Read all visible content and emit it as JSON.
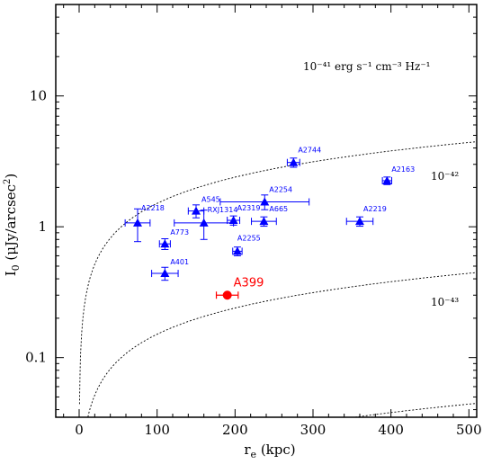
{
  "chart_data": {
    "type": "scatter",
    "xlabel": "r_e (kpc)",
    "ylabel": "I_0 (μJy/arcsec²)",
    "xlim": [
      -30,
      510
    ],
    "ylim": [
      0.035,
      50
    ],
    "y_scale": "log",
    "x_ticks": [
      0,
      100,
      200,
      300,
      400,
      500
    ],
    "y_ticks": [
      {
        "value": 0.1,
        "label": "0.1"
      },
      {
        "value": 1,
        "label": "1"
      },
      {
        "value": 10,
        "label": "10"
      }
    ],
    "colors": {
      "points": "#0000ff",
      "highlight": "#ff0000",
      "curves": "#000000"
    },
    "points": [
      {
        "name": "A2744",
        "x": 275,
        "y": 3.1,
        "xerr": 8,
        "yerr_lo": 0.25,
        "yerr_hi": 0.25
      },
      {
        "name": "A2163",
        "x": 395,
        "y": 2.25,
        "xerr": 6,
        "yerr_lo": 0.15,
        "yerr_hi": 0.15
      },
      {
        "name": "A2254",
        "x": 238,
        "y": 1.55,
        "xerr": 57,
        "yerr_lo": 0.2,
        "yerr_hi": 0.2
      },
      {
        "name": "A545",
        "x": 150,
        "y": 1.32,
        "xerr": 10,
        "yerr_lo": 0.15,
        "yerr_hi": 0.15
      },
      {
        "name": "RXJ1314",
        "x": 160,
        "y": 1.07,
        "xerr": 38,
        "yerr_lo": 0.27,
        "yerr_hi": 0.27
      },
      {
        "name": "A2319",
        "x": 198,
        "y": 1.12,
        "xerr": 8,
        "yerr_lo": 0.09,
        "yerr_hi": 0.09
      },
      {
        "name": "A665",
        "x": 237,
        "y": 1.1,
        "xerr": 16,
        "yerr_lo": 0.09,
        "yerr_hi": 0.09
      },
      {
        "name": "A2218",
        "x": 75,
        "y": 1.07,
        "xerr": 16,
        "yerr_lo": 0.3,
        "yerr_hi": 0.3
      },
      {
        "name": "A2219",
        "x": 360,
        "y": 1.1,
        "xerr": 17,
        "yerr_lo": 0.09,
        "yerr_hi": 0.09
      },
      {
        "name": "A773",
        "x": 110,
        "y": 0.74,
        "xerr": 7,
        "yerr_lo": 0.07,
        "yerr_hi": 0.07
      },
      {
        "name": "A2255",
        "x": 203,
        "y": 0.65,
        "xerr": 6,
        "yerr_lo": 0.05,
        "yerr_hi": 0.05
      },
      {
        "name": "A401",
        "x": 110,
        "y": 0.44,
        "xerr": 17,
        "yerr_lo": 0.05,
        "yerr_hi": 0.05
      }
    ],
    "highlight": {
      "name": "A399",
      "x": 190,
      "y": 0.3,
      "xerr": 14
    },
    "curves": [
      {
        "label": "10⁻⁴¹ erg s⁻¹ cm⁻³ Hz⁻¹",
        "coef": 0.07
      },
      {
        "label": "10⁻⁴²",
        "coef": 0.007
      },
      {
        "label": "10⁻⁴³",
        "coef": 0.0007
      }
    ]
  }
}
